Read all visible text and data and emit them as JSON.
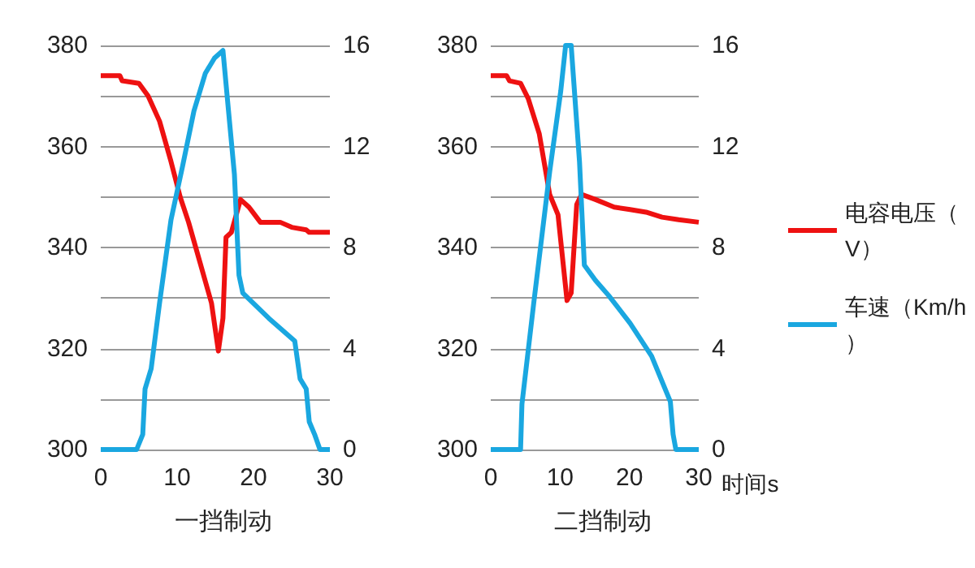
{
  "chart_data": [
    {
      "type": "line",
      "title": "一挡制动",
      "xlim": [
        0,
        30
      ],
      "xticks": [
        0,
        10,
        20,
        30
      ],
      "ylim": [
        300,
        380
      ],
      "yticks": [
        300,
        {
          "value": 310,
          "label": null
        },
        320,
        {
          "value": 330,
          "label": null
        },
        340,
        {
          "value": 350,
          "label": null
        },
        360,
        {
          "value": 370,
          "label": null
        },
        380
      ],
      "y2lim": [
        0,
        16
      ],
      "y2ticks": [
        0,
        4,
        8,
        12,
        16
      ],
      "grid": "y",
      "legend": false,
      "marker": "none",
      "series": [
        {
          "color": "#ee1111",
          "x": [
            0,
            2.5,
            2.8,
            5,
            6.2,
            7.7,
            9.2,
            10.4,
            11.5,
            13,
            14.5,
            15.4,
            16,
            16.4,
            17.1,
            18.3,
            19.4,
            20.9,
            23.5,
            25,
            26.9,
            27.3,
            30
          ],
          "values": [
            374,
            374,
            373,
            372.5,
            370,
            365,
            357,
            350,
            345,
            337,
            329,
            319.5,
            326,
            342,
            343,
            349.5,
            348,
            345,
            345,
            344,
            343.5,
            343,
            343
          ]
        },
        {
          "color": "#1aa7e0",
          "axis": "y2",
          "x": [
            0,
            4.7,
            5.5,
            5.8,
            6.6,
            7.7,
            9.2,
            10.7,
            12.2,
            13.7,
            14.9,
            16,
            16.7,
            17.5,
            18.1,
            18.6,
            22,
            25.4,
            26.1,
            26.9,
            27.3,
            28,
            28.7,
            30
          ],
          "values": [
            0,
            0,
            0.6,
            2.4,
            3.2,
            5.8,
            9.1,
            11.2,
            13.4,
            14.9,
            15.5,
            15.8,
            13.5,
            10.9,
            6.9,
            6.2,
            5.2,
            4.3,
            2.8,
            2.4,
            1.1,
            0.6,
            0,
            0
          ]
        }
      ]
    },
    {
      "type": "line",
      "title": "二挡制动",
      "xlabel": "时间s",
      "xlim": [
        0,
        30
      ],
      "xticks": [
        0,
        10,
        20,
        30
      ],
      "ylim": [
        300,
        380
      ],
      "yticks": [
        300,
        {
          "value": 310,
          "label": null
        },
        320,
        {
          "value": 330,
          "label": null
        },
        340,
        {
          "value": 350,
          "label": null
        },
        360,
        {
          "value": 370,
          "label": null
        },
        380
      ],
      "y2lim": [
        0,
        16
      ],
      "y2ticks": [
        0,
        4,
        8,
        12,
        16
      ],
      "grid": "y",
      "legend": "right",
      "marker": "none",
      "series": [
        {
          "name": "电容电压（V）",
          "color": "#ee1111",
          "x": [
            0,
            2.3,
            2.7,
            4.3,
            5.4,
            7,
            8.5,
            9.7,
            11,
            11.6,
            12.4,
            13.1,
            15.1,
            17.8,
            20.1,
            22.4,
            24.7,
            27.1,
            30
          ],
          "values": [
            374,
            374,
            373,
            372.5,
            369.5,
            362.5,
            350.5,
            346.5,
            329.5,
            331,
            348.5,
            350.5,
            349.5,
            348,
            347.5,
            347,
            346,
            345.5,
            345
          ]
        },
        {
          "name": "车速（Km/h）",
          "color": "#1aa7e0",
          "axis": "y2",
          "x": [
            0,
            4.3,
            4.5,
            6.2,
            8.5,
            10.1,
            10.8,
            11.6,
            12.8,
            13.5,
            15.1,
            17,
            20.1,
            23.2,
            25.9,
            26.3,
            26.7,
            30
          ],
          "values": [
            0,
            0,
            1.8,
            5.8,
            11,
            14.2,
            16,
            16,
            11.4,
            7.3,
            6.7,
            6.1,
            5,
            3.7,
            1.9,
            0.6,
            0,
            0
          ]
        }
      ]
    }
  ]
}
